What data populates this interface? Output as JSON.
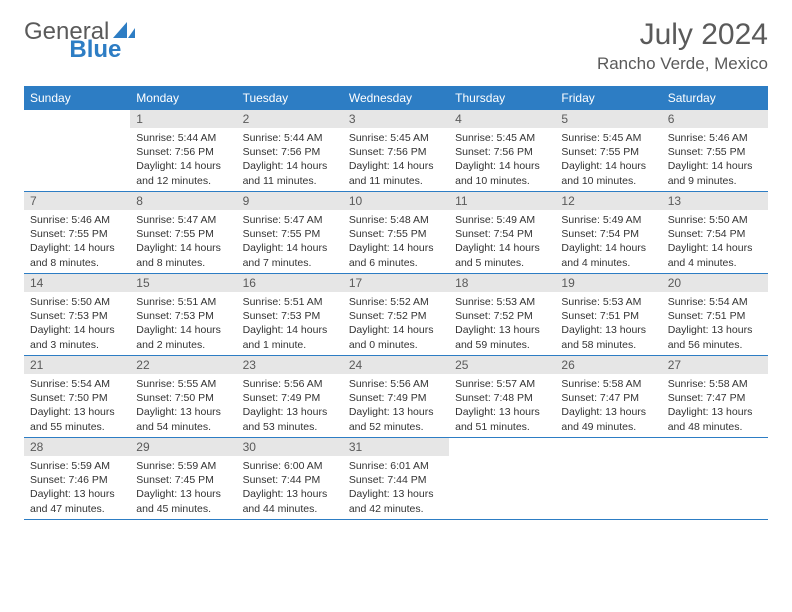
{
  "brand": {
    "part1": "General",
    "part2": "Blue"
  },
  "title": "July 2024",
  "location": "Rancho Verde, Mexico",
  "colors": {
    "header_bg": "#2d7dc4",
    "header_text": "#ffffff",
    "daynum_bg": "#e6e6e6",
    "text": "#333333",
    "muted": "#5a5a5a",
    "rule": "#2d7dc4"
  },
  "typography": {
    "title_fontsize": 30,
    "location_fontsize": 17,
    "weekday_fontsize": 12,
    "daynum_fontsize": 12,
    "body_fontsize": 10.5
  },
  "weekdays": [
    "Sunday",
    "Monday",
    "Tuesday",
    "Wednesday",
    "Thursday",
    "Friday",
    "Saturday"
  ],
  "weeks": [
    [
      {
        "day": "",
        "lines": []
      },
      {
        "day": "1",
        "lines": [
          "Sunrise: 5:44 AM",
          "Sunset: 7:56 PM",
          "Daylight: 14 hours and 12 minutes."
        ]
      },
      {
        "day": "2",
        "lines": [
          "Sunrise: 5:44 AM",
          "Sunset: 7:56 PM",
          "Daylight: 14 hours and 11 minutes."
        ]
      },
      {
        "day": "3",
        "lines": [
          "Sunrise: 5:45 AM",
          "Sunset: 7:56 PM",
          "Daylight: 14 hours and 11 minutes."
        ]
      },
      {
        "day": "4",
        "lines": [
          "Sunrise: 5:45 AM",
          "Sunset: 7:56 PM",
          "Daylight: 14 hours and 10 minutes."
        ]
      },
      {
        "day": "5",
        "lines": [
          "Sunrise: 5:45 AM",
          "Sunset: 7:55 PM",
          "Daylight: 14 hours and 10 minutes."
        ]
      },
      {
        "day": "6",
        "lines": [
          "Sunrise: 5:46 AM",
          "Sunset: 7:55 PM",
          "Daylight: 14 hours and 9 minutes."
        ]
      }
    ],
    [
      {
        "day": "7",
        "lines": [
          "Sunrise: 5:46 AM",
          "Sunset: 7:55 PM",
          "Daylight: 14 hours and 8 minutes."
        ]
      },
      {
        "day": "8",
        "lines": [
          "Sunrise: 5:47 AM",
          "Sunset: 7:55 PM",
          "Daylight: 14 hours and 8 minutes."
        ]
      },
      {
        "day": "9",
        "lines": [
          "Sunrise: 5:47 AM",
          "Sunset: 7:55 PM",
          "Daylight: 14 hours and 7 minutes."
        ]
      },
      {
        "day": "10",
        "lines": [
          "Sunrise: 5:48 AM",
          "Sunset: 7:55 PM",
          "Daylight: 14 hours and 6 minutes."
        ]
      },
      {
        "day": "11",
        "lines": [
          "Sunrise: 5:49 AM",
          "Sunset: 7:54 PM",
          "Daylight: 14 hours and 5 minutes."
        ]
      },
      {
        "day": "12",
        "lines": [
          "Sunrise: 5:49 AM",
          "Sunset: 7:54 PM",
          "Daylight: 14 hours and 4 minutes."
        ]
      },
      {
        "day": "13",
        "lines": [
          "Sunrise: 5:50 AM",
          "Sunset: 7:54 PM",
          "Daylight: 14 hours and 4 minutes."
        ]
      }
    ],
    [
      {
        "day": "14",
        "lines": [
          "Sunrise: 5:50 AM",
          "Sunset: 7:53 PM",
          "Daylight: 14 hours and 3 minutes."
        ]
      },
      {
        "day": "15",
        "lines": [
          "Sunrise: 5:51 AM",
          "Sunset: 7:53 PM",
          "Daylight: 14 hours and 2 minutes."
        ]
      },
      {
        "day": "16",
        "lines": [
          "Sunrise: 5:51 AM",
          "Sunset: 7:53 PM",
          "Daylight: 14 hours and 1 minute."
        ]
      },
      {
        "day": "17",
        "lines": [
          "Sunrise: 5:52 AM",
          "Sunset: 7:52 PM",
          "Daylight: 14 hours and 0 minutes."
        ]
      },
      {
        "day": "18",
        "lines": [
          "Sunrise: 5:53 AM",
          "Sunset: 7:52 PM",
          "Daylight: 13 hours and 59 minutes."
        ]
      },
      {
        "day": "19",
        "lines": [
          "Sunrise: 5:53 AM",
          "Sunset: 7:51 PM",
          "Daylight: 13 hours and 58 minutes."
        ]
      },
      {
        "day": "20",
        "lines": [
          "Sunrise: 5:54 AM",
          "Sunset: 7:51 PM",
          "Daylight: 13 hours and 56 minutes."
        ]
      }
    ],
    [
      {
        "day": "21",
        "lines": [
          "Sunrise: 5:54 AM",
          "Sunset: 7:50 PM",
          "Daylight: 13 hours and 55 minutes."
        ]
      },
      {
        "day": "22",
        "lines": [
          "Sunrise: 5:55 AM",
          "Sunset: 7:50 PM",
          "Daylight: 13 hours and 54 minutes."
        ]
      },
      {
        "day": "23",
        "lines": [
          "Sunrise: 5:56 AM",
          "Sunset: 7:49 PM",
          "Daylight: 13 hours and 53 minutes."
        ]
      },
      {
        "day": "24",
        "lines": [
          "Sunrise: 5:56 AM",
          "Sunset: 7:49 PM",
          "Daylight: 13 hours and 52 minutes."
        ]
      },
      {
        "day": "25",
        "lines": [
          "Sunrise: 5:57 AM",
          "Sunset: 7:48 PM",
          "Daylight: 13 hours and 51 minutes."
        ]
      },
      {
        "day": "26",
        "lines": [
          "Sunrise: 5:58 AM",
          "Sunset: 7:47 PM",
          "Daylight: 13 hours and 49 minutes."
        ]
      },
      {
        "day": "27",
        "lines": [
          "Sunrise: 5:58 AM",
          "Sunset: 7:47 PM",
          "Daylight: 13 hours and 48 minutes."
        ]
      }
    ],
    [
      {
        "day": "28",
        "lines": [
          "Sunrise: 5:59 AM",
          "Sunset: 7:46 PM",
          "Daylight: 13 hours and 47 minutes."
        ]
      },
      {
        "day": "29",
        "lines": [
          "Sunrise: 5:59 AM",
          "Sunset: 7:45 PM",
          "Daylight: 13 hours and 45 minutes."
        ]
      },
      {
        "day": "30",
        "lines": [
          "Sunrise: 6:00 AM",
          "Sunset: 7:44 PM",
          "Daylight: 13 hours and 44 minutes."
        ]
      },
      {
        "day": "31",
        "lines": [
          "Sunrise: 6:01 AM",
          "Sunset: 7:44 PM",
          "Daylight: 13 hours and 42 minutes."
        ]
      },
      {
        "day": "",
        "lines": []
      },
      {
        "day": "",
        "lines": []
      },
      {
        "day": "",
        "lines": []
      }
    ]
  ]
}
